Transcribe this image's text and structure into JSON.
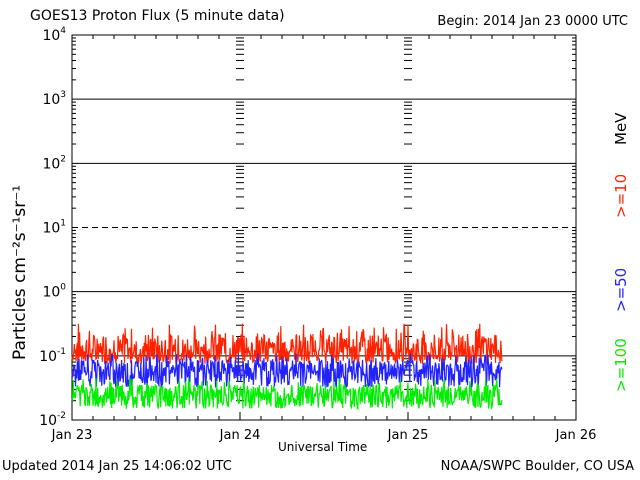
{
  "header": {
    "title": "GOES13 Proton Flux (5 minute data)",
    "begin": "Begin: 2014 Jan 23 0000 UTC"
  },
  "footer": {
    "updated": "Updated 2014 Jan 25 14:06:02 UTC",
    "credit": "NOAA/SWPC Boulder, CO USA"
  },
  "chart_data": {
    "type": "line",
    "title": "GOES13 Proton Flux (5 minute data)",
    "xlabel": "Universal Time",
    "ylabel": "Particles cm⁻²s⁻¹sr⁻¹",
    "yscale": "log",
    "ylim": [
      0.01,
      10000
    ],
    "yticks": [
      {
        "value": 0.01,
        "base": "10",
        "exp": "-2"
      },
      {
        "value": 0.1,
        "base": "10",
        "exp": "-1"
      },
      {
        "value": 1,
        "base": "10",
        "exp": "0"
      },
      {
        "value": 10,
        "base": "10",
        "exp": "1"
      },
      {
        "value": 100,
        "base": "10",
        "exp": "2"
      },
      {
        "value": 1000,
        "base": "10",
        "exp": "3"
      },
      {
        "value": 10000,
        "base": "10",
        "exp": "4"
      }
    ],
    "xticks": [
      "Jan 23",
      "Jan 24",
      "Jan 25",
      "Jan 26"
    ],
    "xlim_days": [
      0,
      3
    ],
    "legend_unit": "MeV",
    "series": [
      {
        "name": ">=10",
        "color": "#ff2200",
        "day_end": 2.56,
        "low": 0.075,
        "typical": 0.12,
        "peak": 0.32
      },
      {
        "name": ">=50",
        "color": "#2222ff",
        "day_end": 2.56,
        "low": 0.032,
        "typical": 0.06,
        "peak": 0.11
      },
      {
        "name": ">=100",
        "color": "#00ee00",
        "day_end": 2.56,
        "low": 0.015,
        "typical": 0.025,
        "peak": 0.045
      }
    ],
    "grid": true
  }
}
